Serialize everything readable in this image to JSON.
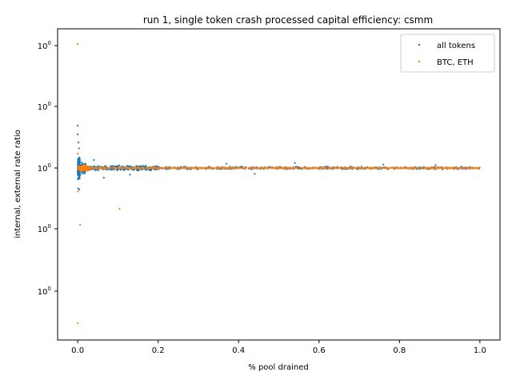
{
  "chart_data": {
    "type": "scatter",
    "title": "run 1, single token crash processed capital efficiency: csmm",
    "xlabel": "% pool drained",
    "ylabel": "internal, external rate ratio",
    "xlim": [
      -0.05,
      1.05
    ],
    "x_ticks": [
      0.0,
      0.2,
      0.4,
      0.6,
      0.8,
      1.0
    ],
    "x_tick_labels": [
      "0.0",
      "0.2",
      "0.4",
      "0.6",
      "0.8",
      "1.0"
    ],
    "y_scale": "log",
    "y_tick_labels": [
      "10^0",
      "10^0",
      "10^0",
      "10^0",
      "10^0"
    ],
    "grid": false,
    "legend_position": "top-right",
    "series": [
      {
        "name": "all tokens",
        "color": "#1f77b4",
        "clusters": [
          {
            "x_range": [
              0.0,
              0.006
            ],
            "y_range": [
              0.6,
              1.6
            ],
            "count": 140
          },
          {
            "x_range": [
              0.0,
              0.02
            ],
            "y_range": [
              0.8,
              1.25
            ],
            "count": 180
          },
          {
            "x_range": [
              0.02,
              0.2
            ],
            "y_range": [
              0.9,
              1.1
            ],
            "count": 320
          },
          {
            "x_range": [
              0.2,
              1.0
            ],
            "y_range": [
              0.94,
              1.06
            ],
            "count": 520
          }
        ],
        "points": [
          {
            "x": 0.0,
            "y": 4.0
          },
          {
            "x": 0.0,
            "y": 3.0
          },
          {
            "x": 0.002,
            "y": 2.3
          },
          {
            "x": 0.003,
            "y": 1.9
          },
          {
            "x": 0.001,
            "y": 0.5
          },
          {
            "x": 0.004,
            "y": 0.48
          },
          {
            "x": 0.04,
            "y": 1.3
          },
          {
            "x": 0.065,
            "y": 0.72
          },
          {
            "x": 0.13,
            "y": 0.8
          },
          {
            "x": 0.44,
            "y": 0.82
          },
          {
            "x": 0.54,
            "y": 1.18
          },
          {
            "x": 0.37,
            "y": 1.15
          },
          {
            "x": 0.76,
            "y": 1.12
          },
          {
            "x": 0.89,
            "y": 1.1
          }
        ]
      },
      {
        "name": "BTC, ETH",
        "color": "#ff7f0e",
        "clusters": [
          {
            "x_range": [
              0.0,
              0.03
            ],
            "y_range": [
              0.85,
              1.15
            ],
            "count": 90
          },
          {
            "x_range": [
              0.03,
              1.0
            ],
            "y_range": [
              0.98,
              1.02
            ],
            "count": 800
          }
        ],
        "points": [
          {
            "x": 0.0,
            "y": 1500
          },
          {
            "x": 0.0,
            "y": 1.6
          },
          {
            "x": 0.0,
            "y": 0.45
          },
          {
            "x": 0.104,
            "y": 0.25
          },
          {
            "x": 0.006,
            "y": 0.06
          },
          {
            "x": 0.0,
            "y": 0.0005
          }
        ]
      }
    ]
  }
}
